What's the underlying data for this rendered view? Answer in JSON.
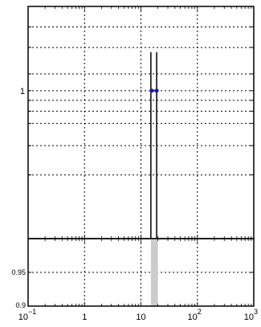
{
  "chart_data": [
    {
      "type": "line",
      "panel": "top",
      "x_scale": "log",
      "xlim": [
        0.1,
        1000
      ],
      "y_tick_labels": [
        "1"
      ],
      "grid": true,
      "series": [
        {
          "kind": "vertical-line",
          "x": 15,
          "y": [
            0.2,
            1.52
          ],
          "color": "#000000"
        },
        {
          "kind": "vertical-line",
          "x": 19,
          "y": [
            0.2,
            1.52
          ],
          "color": "#000000"
        },
        {
          "kind": "points",
          "x": [
            15.5,
            19
          ],
          "y": [
            1,
            1
          ],
          "color": "#1a1aaa"
        }
      ]
    },
    {
      "type": "bar",
      "panel": "bottom",
      "x_scale": "log",
      "xlim": [
        0.1,
        1000
      ],
      "ylim": [
        0.9,
        1.0
      ],
      "y_tick_labels": [
        "0.95",
        "0.9"
      ],
      "x_tick_labels": [
        "10",
        "1",
        "10",
        "10",
        "10"
      ],
      "x_tick_exponents": [
        "−1",
        "",
        "",
        "2",
        "3"
      ],
      "grid": true,
      "series": [
        {
          "kind": "shaded-band",
          "x": [
            15,
            20
          ],
          "y": [
            0.9,
            1.0
          ],
          "color": "#cccccc"
        }
      ]
    }
  ]
}
